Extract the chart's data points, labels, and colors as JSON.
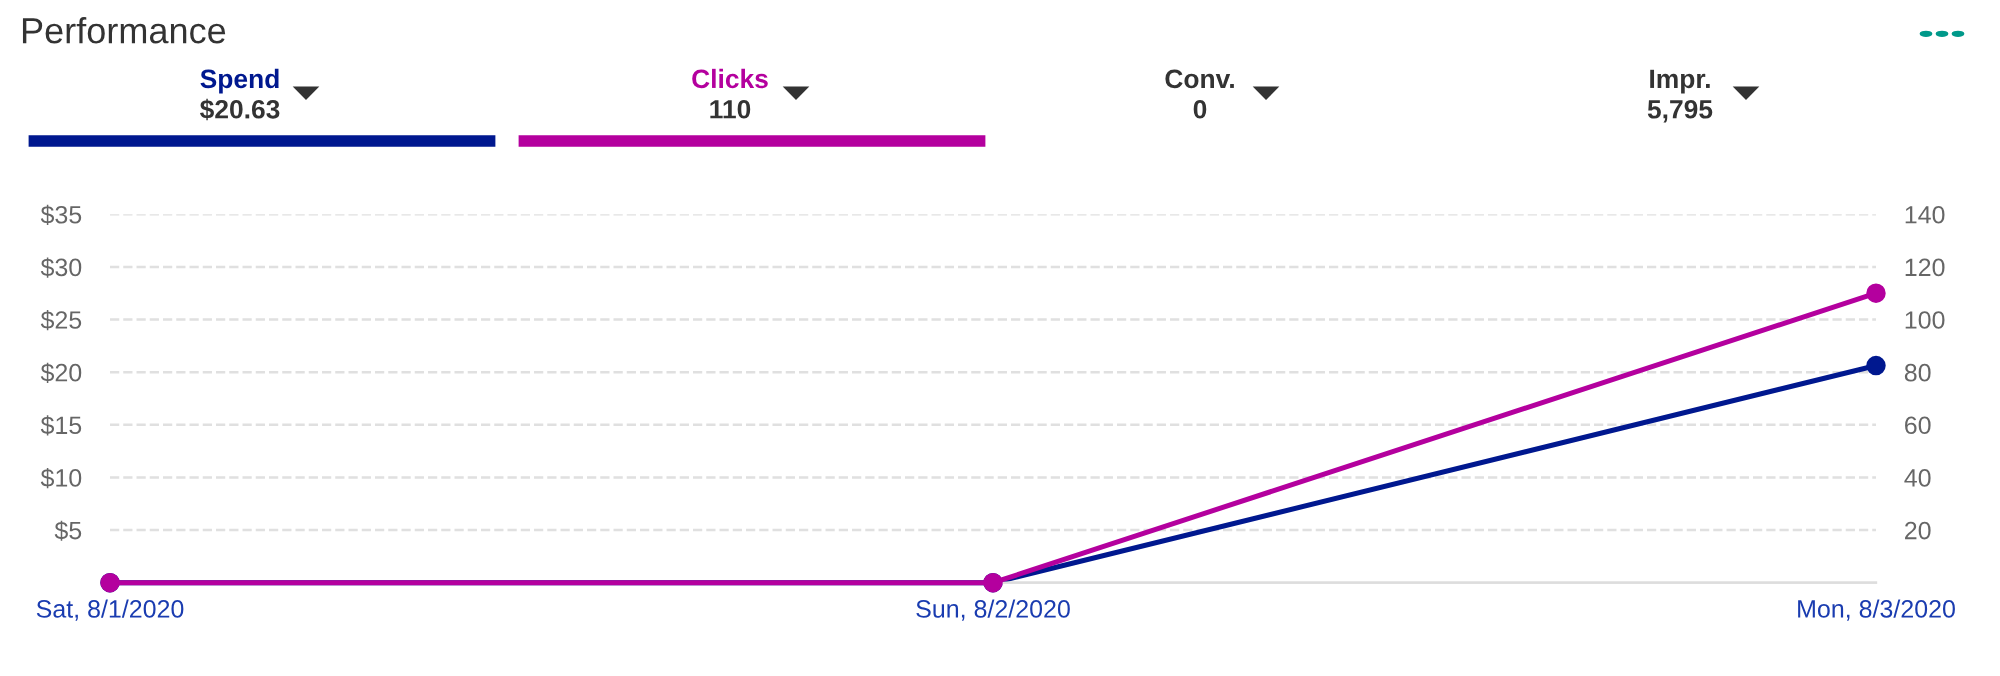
{
  "chart_data": {
    "type": "line",
    "title": "Performance",
    "categories": [
      "Sat, 8/1/2020",
      "Sun, 8/2/2020",
      "Mon, 8/3/2020"
    ],
    "series": [
      {
        "name": "Spend",
        "color": "#00188f",
        "values": [
          0,
          0,
          20.63
        ]
      },
      {
        "name": "Clicks",
        "color": "#b4009e",
        "values": [
          0,
          0,
          110
        ],
        "axis": "y2"
      }
    ],
    "annotations": [
      "$20.63",
      "110",
      "Conv.",
      "0",
      "Impr.",
      "5,795"
    ],
    "ylim": [
      0,
      35
    ],
    "yticks": [
      {
        "value": 5,
        "label": "$5"
      },
      {
        "value": 10,
        "label": "$10"
      },
      {
        "value": 15,
        "label": "$15"
      },
      {
        "value": 20,
        "label": "$20"
      },
      {
        "value": 25,
        "label": "$25"
      },
      {
        "value": 30,
        "label": "$30"
      },
      {
        "value": 35,
        "label": "$35"
      }
    ],
    "y2lim": [
      0,
      140
    ],
    "y2ticks": [
      20,
      40,
      60,
      80,
      100,
      120,
      140
    ],
    "grid": "y",
    "legend": "top",
    "marker": "circle",
    "line_style": "solid"
  }
}
